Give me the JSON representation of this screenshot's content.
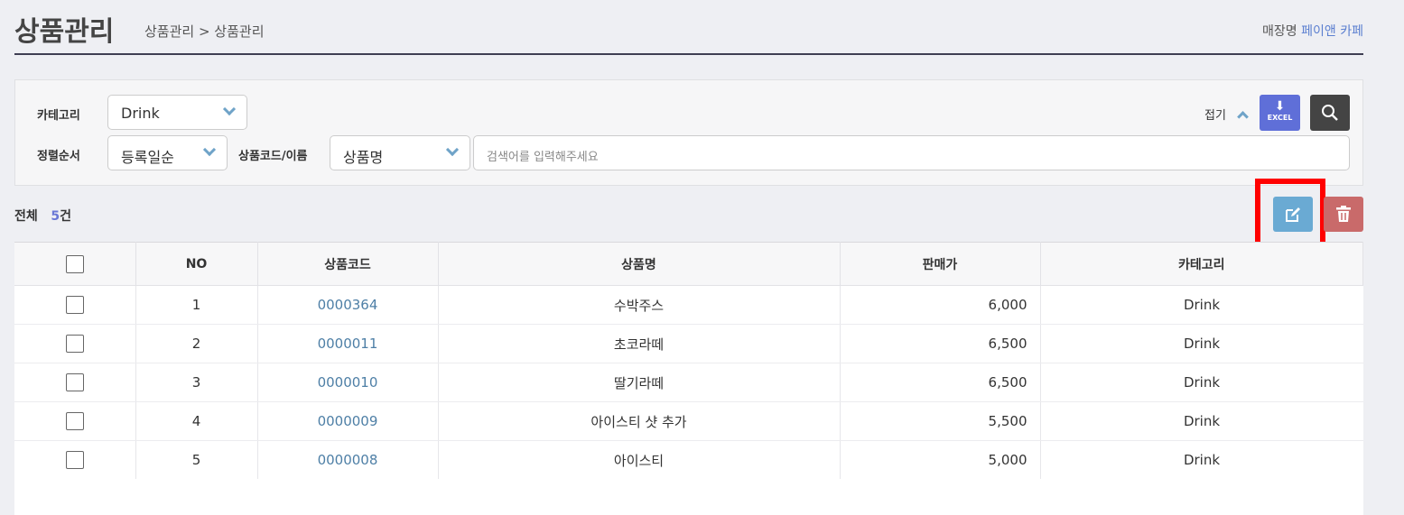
{
  "header": {
    "title": "상품관리",
    "breadcrumb": "상품관리 > 상품관리",
    "store_label": "매장명",
    "store_name": "페이앤 카페"
  },
  "filter": {
    "category_label": "카테고리",
    "category_value": "Drink",
    "sort_label": "정렬순서",
    "sort_value": "등록일순",
    "code_name_label": "상품코드/이름",
    "code_name_value": "상품명",
    "search_placeholder": "검색어를 입력해주세요",
    "collapse_label": "접기",
    "excel_label": "EXCEL"
  },
  "summary": {
    "total_label": "전체",
    "count": "5",
    "unit": "건"
  },
  "colors": {
    "excel": "#5f6fd8",
    "edit": "#6aaad3",
    "delete": "#c96a6a",
    "highlight": "#ff0000"
  },
  "table": {
    "headers": [
      "NO",
      "상품코드",
      "상품명",
      "판매가",
      "카테고리"
    ],
    "rows": [
      {
        "no": "1",
        "code": "0000364",
        "name": "수박주스",
        "price": "6,000",
        "category": "Drink"
      },
      {
        "no": "2",
        "code": "0000011",
        "name": "초코라떼",
        "price": "6,500",
        "category": "Drink"
      },
      {
        "no": "3",
        "code": "0000010",
        "name": "딸기라떼",
        "price": "6,500",
        "category": "Drink"
      },
      {
        "no": "4",
        "code": "0000009",
        "name": "아이스티 샷 추가",
        "price": "5,500",
        "category": "Drink"
      },
      {
        "no": "5",
        "code": "0000008",
        "name": "아이스티",
        "price": "5,000",
        "category": "Drink"
      }
    ]
  }
}
